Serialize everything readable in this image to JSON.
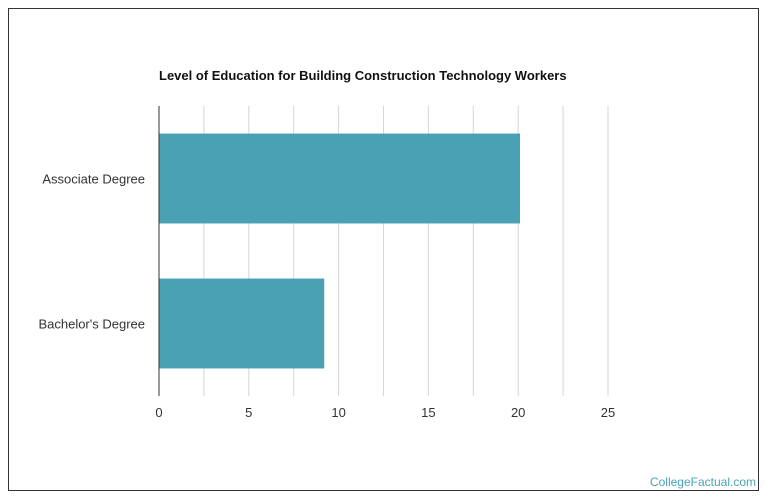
{
  "chart_data": {
    "type": "bar",
    "orientation": "horizontal",
    "title": "Level of Education for Building Construction Technology Workers",
    "categories": [
      "Associate Degree",
      "Bachelor's Degree"
    ],
    "values": [
      20.1,
      9.2
    ],
    "xlabel": "",
    "ylabel": "",
    "xlim": [
      0,
      25
    ],
    "x_ticks": [
      0,
      5,
      10,
      15,
      20,
      25
    ],
    "grid": true,
    "bar_color": "#4aa1b3",
    "grid_color": "#d6d6d6",
    "axis_color": "#333333"
  },
  "branding": {
    "text": "CollegeFactual.com",
    "color": "#4aa3b5"
  }
}
